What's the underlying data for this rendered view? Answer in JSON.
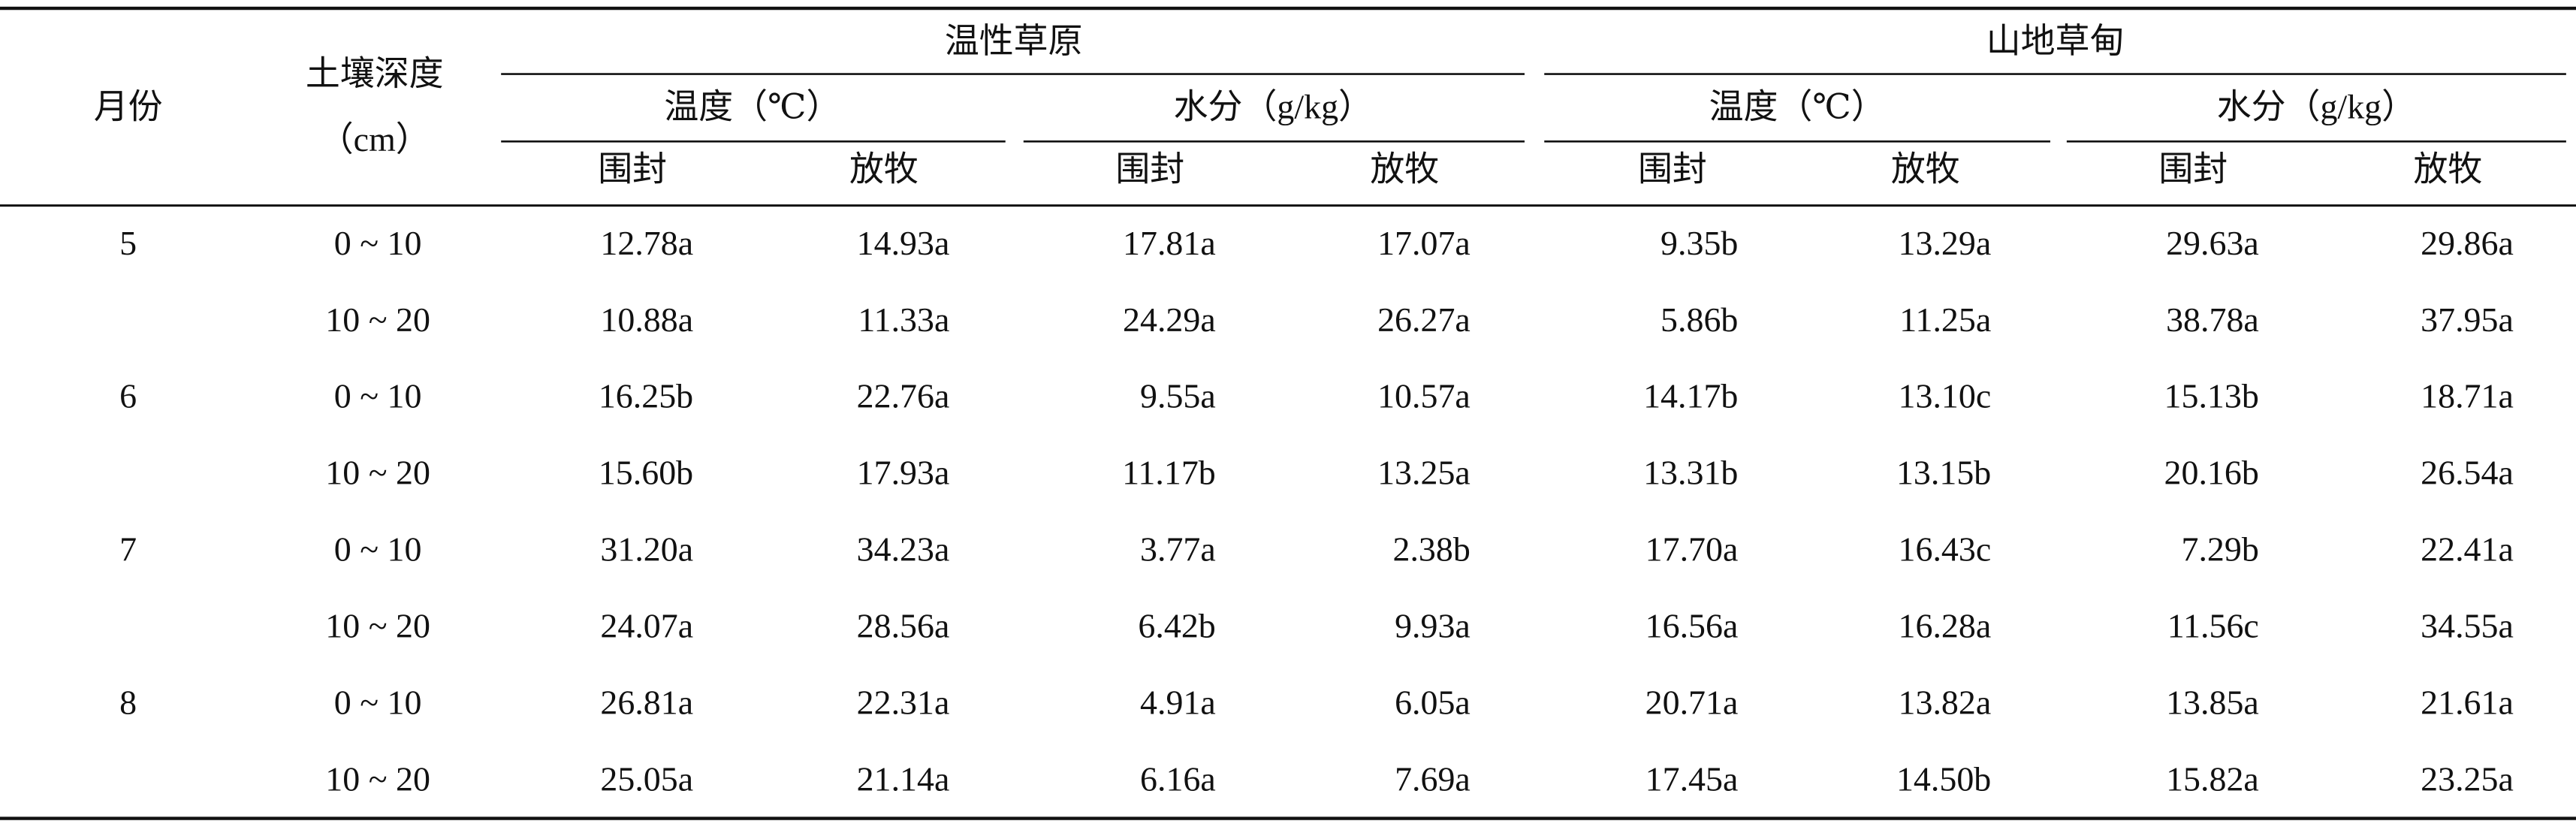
{
  "header": {
    "month": "月份",
    "depth": [
      "土壤深度",
      "（cm）"
    ],
    "groups": [
      {
        "title": "温性草原",
        "subgroups": [
          {
            "title": "温度（℃）",
            "columns": [
              "围封",
              "放牧"
            ]
          },
          {
            "title": "水分（g/kg）",
            "columns": [
              "围封",
              "放牧"
            ]
          }
        ]
      },
      {
        "title": "山地草甸",
        "subgroups": [
          {
            "title": "温度（℃）",
            "columns": [
              "围封",
              "放牧"
            ]
          },
          {
            "title": "水分（g/kg）",
            "columns": [
              "围封",
              "放牧"
            ]
          }
        ]
      }
    ]
  },
  "table": {
    "months": [
      {
        "month": "5",
        "rows": [
          {
            "depth": "0 ~ 10",
            "values": [
              "12.78a",
              "14.93a",
              "17.81a",
              "17.07a",
              "9.35b",
              "13.29a",
              "29.63a",
              "29.86a"
            ]
          },
          {
            "depth": "10 ~ 20",
            "values": [
              "10.88a",
              "11.33a",
              "24.29a",
              "26.27a",
              "5.86b",
              "11.25a",
              "38.78a",
              "37.95a"
            ]
          }
        ]
      },
      {
        "month": "6",
        "rows": [
          {
            "depth": "0 ~ 10",
            "values": [
              "16.25b",
              "22.76a",
              "9.55a",
              "10.57a",
              "14.17b",
              "13.10c",
              "15.13b",
              "18.71a"
            ]
          },
          {
            "depth": "10 ~ 20",
            "values": [
              "15.60b",
              "17.93a",
              "11.17b",
              "13.25a",
              "13.31b",
              "13.15b",
              "20.16b",
              "26.54a"
            ]
          }
        ]
      },
      {
        "month": "7",
        "rows": [
          {
            "depth": "0 ~ 10",
            "values": [
              "31.20a",
              "34.23a",
              "3.77a",
              "2.38b",
              "17.70a",
              "16.43c",
              "7.29b",
              "22.41a"
            ]
          },
          {
            "depth": "10 ~ 20",
            "values": [
              "24.07a",
              "28.56a",
              "6.42b",
              "9.93a",
              "16.56a",
              "16.28a",
              "11.56c",
              "34.55a"
            ]
          }
        ]
      },
      {
        "month": "8",
        "rows": [
          {
            "depth": "0 ~ 10",
            "values": [
              "26.81a",
              "22.31a",
              "4.91a",
              "6.05a",
              "20.71a",
              "13.82a",
              "13.85a",
              "21.61a"
            ]
          },
          {
            "depth": "10 ~ 20",
            "values": [
              "25.05a",
              "21.14a",
              "6.16a",
              "7.69a",
              "17.45a",
              "14.50b",
              "15.82a",
              "23.25a"
            ]
          }
        ]
      }
    ]
  }
}
